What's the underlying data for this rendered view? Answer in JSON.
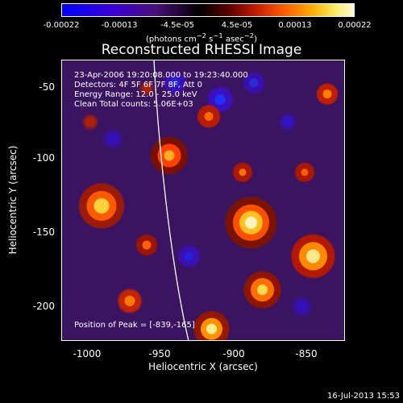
{
  "colorbar": {
    "ticks": [
      "-0.00022",
      "-0.00013",
      "-4.5e-05",
      "4.5e-05",
      "0.00013",
      "0.00022"
    ],
    "units_main": "(photons cm",
    "units_tail": " asec"
  },
  "title": "Reconstructed RHESSI Image",
  "info": {
    "time": "23-Apr-2006 19:20:08.000 to 19:23:40.000",
    "detectors": "Detectors: 4F 5F 6F 7F 8F, Att 0",
    "energy": "Energy Range: 12.0 - 25.0 keV",
    "clean": "Clean     Total counts: 5.06E+03",
    "peak": "Position of Peak = [-839,-165]"
  },
  "axes": {
    "xlabel": "Heliocentric X (arcsec)",
    "ylabel": "Heliocentric Y (arcsec)",
    "xticks": [
      "-1000",
      "-950",
      "-900",
      "-850"
    ],
    "yticks": [
      "-50",
      "-100",
      "-150",
      "-200"
    ]
  },
  "footer": {
    "date": "16-Jul-2013 15:53"
  }
}
